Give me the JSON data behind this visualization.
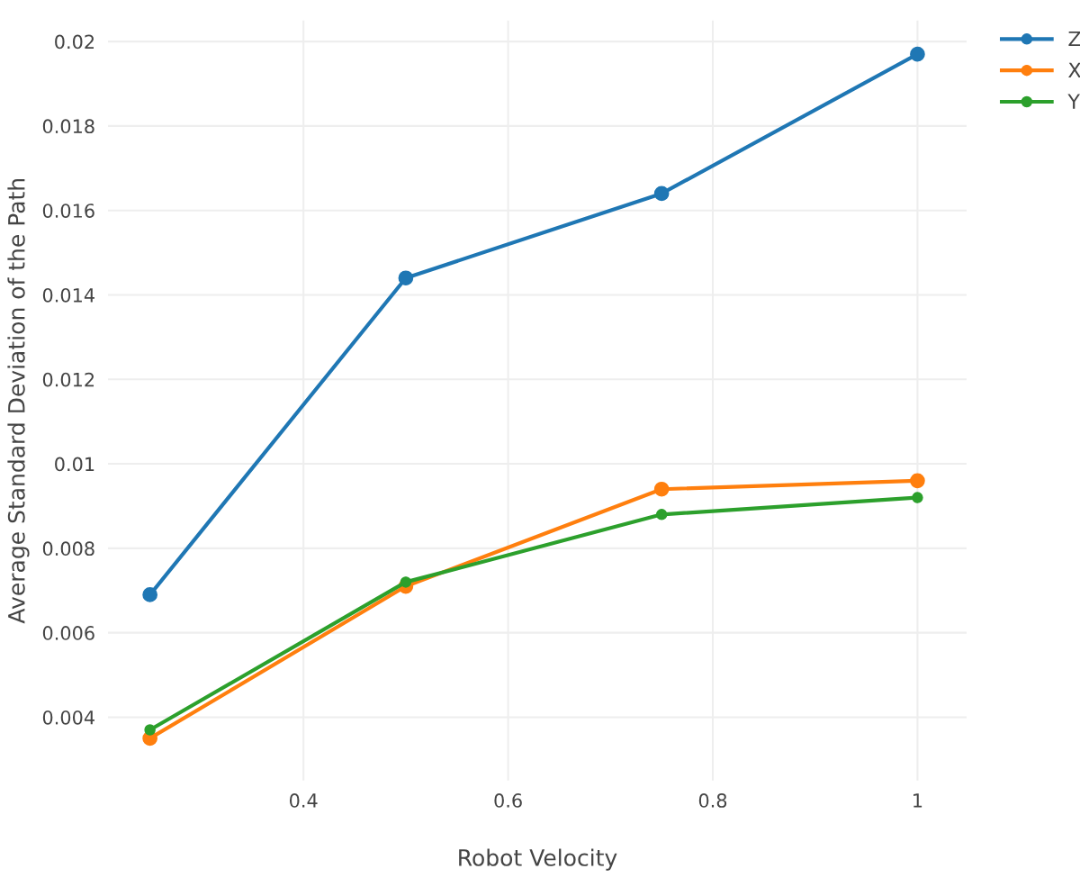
{
  "chart_data": {
    "type": "line",
    "xlabel": "Robot Velocity",
    "ylabel": "Average Standard Deviation of the Path",
    "x": [
      0.25,
      0.5,
      0.75,
      1
    ],
    "series": [
      {
        "name": "Z",
        "color": "#1f77b4",
        "values": [
          0.0069,
          0.0144,
          0.0164,
          0.0197
        ]
      },
      {
        "name": "X",
        "color": "#ff7f0e",
        "values": [
          0.0035,
          0.0071,
          0.0094,
          0.0096
        ]
      },
      {
        "name": "Y",
        "color": "#2ca02c",
        "values": [
          0.0037,
          0.0072,
          0.0088,
          0.0092
        ]
      }
    ],
    "xlim": [
      0.209,
      1.048
    ],
    "xticks": [
      0.4,
      0.6,
      0.8,
      1
    ],
    "ylim": [
      0.0025,
      0.0205
    ],
    "yticks": [
      0.004,
      0.006,
      0.008,
      0.01,
      0.012,
      0.014,
      0.016,
      0.018,
      0.02
    ],
    "grid": true,
    "legend": "top right",
    "marker": "circle",
    "line_style": "solid"
  }
}
